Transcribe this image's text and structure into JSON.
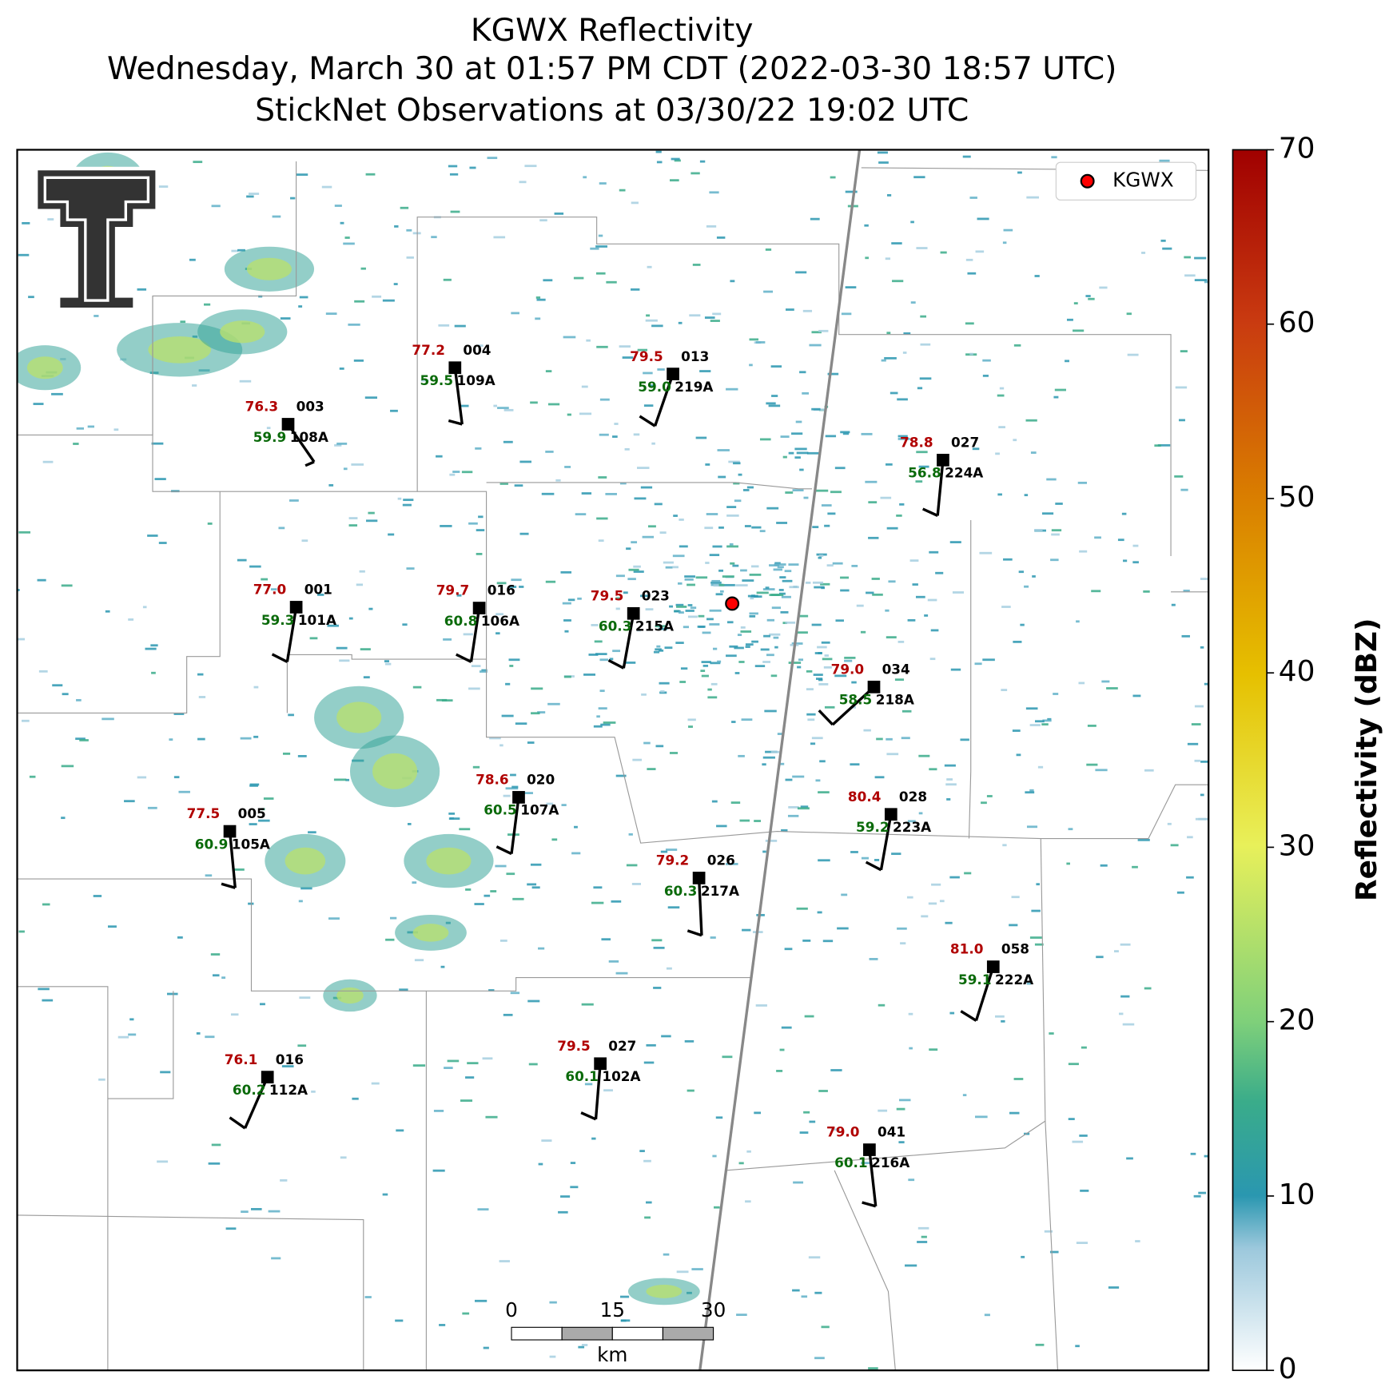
{
  "header": {
    "title": "KGWX Reflectivity",
    "subtitle": "Wednesday, March 30 at 01:57 PM CDT (2022-03-30 18:57 UTC)",
    "observations": "StickNet Observations at 03/30/22 19:02 UTC"
  },
  "legend": {
    "label": "KGWX"
  },
  "stations": [
    {
      "temp": "76.3",
      "dewpoint": "59.9",
      "id": "003",
      "name": "108A"
    },
    {
      "temp": "77.2",
      "dewpoint": "59.5",
      "id": "004",
      "name": "109A"
    },
    {
      "temp": "79.5",
      "dewpoint": "59.0",
      "id": "013",
      "name": "219A"
    },
    {
      "temp": "78.8",
      "dewpoint": "56.8",
      "id": "027",
      "name": "224A"
    },
    {
      "temp": "77.0",
      "dewpoint": "59.3",
      "id": "001",
      "name": "101A"
    },
    {
      "temp": "79.7",
      "dewpoint": "60.8",
      "id": "016",
      "name": "106A"
    },
    {
      "temp": "79.5",
      "dewpoint": "60.3",
      "id": "023",
      "name": "215A"
    },
    {
      "temp": "79.0",
      "dewpoint": "58.5",
      "id": "034",
      "name": "218A"
    },
    {
      "temp": "78.6",
      "dewpoint": "60.5",
      "id": "020",
      "name": "107A"
    },
    {
      "temp": "80.4",
      "dewpoint": "59.2",
      "id": "028",
      "name": "223A"
    },
    {
      "temp": "77.5",
      "dewpoint": "60.9",
      "id": "005",
      "name": "105A"
    },
    {
      "temp": "79.2",
      "dewpoint": "60.3",
      "id": "026",
      "name": "217A"
    },
    {
      "temp": "81.0",
      "dewpoint": "59.1",
      "id": "058",
      "name": "222A"
    },
    {
      "temp": "79.5",
      "dewpoint": "60.1",
      "id": "027",
      "name": "102A"
    },
    {
      "temp": "76.1",
      "dewpoint": "60.2",
      "id": "016",
      "name": "112A"
    },
    {
      "temp": "79.0",
      "dewpoint": "60.1",
      "id": "041",
      "name": "216A"
    }
  ],
  "colorbar": {
    "label": "Reflectivity (dBZ)",
    "lim": [
      0,
      70
    ],
    "ticks": [
      0,
      10,
      20,
      30,
      40,
      50,
      60,
      70
    ]
  },
  "scale_bar": {
    "lim": [
      0,
      30
    ],
    "ticks": [
      0,
      15,
      30
    ],
    "unit": "km"
  }
}
